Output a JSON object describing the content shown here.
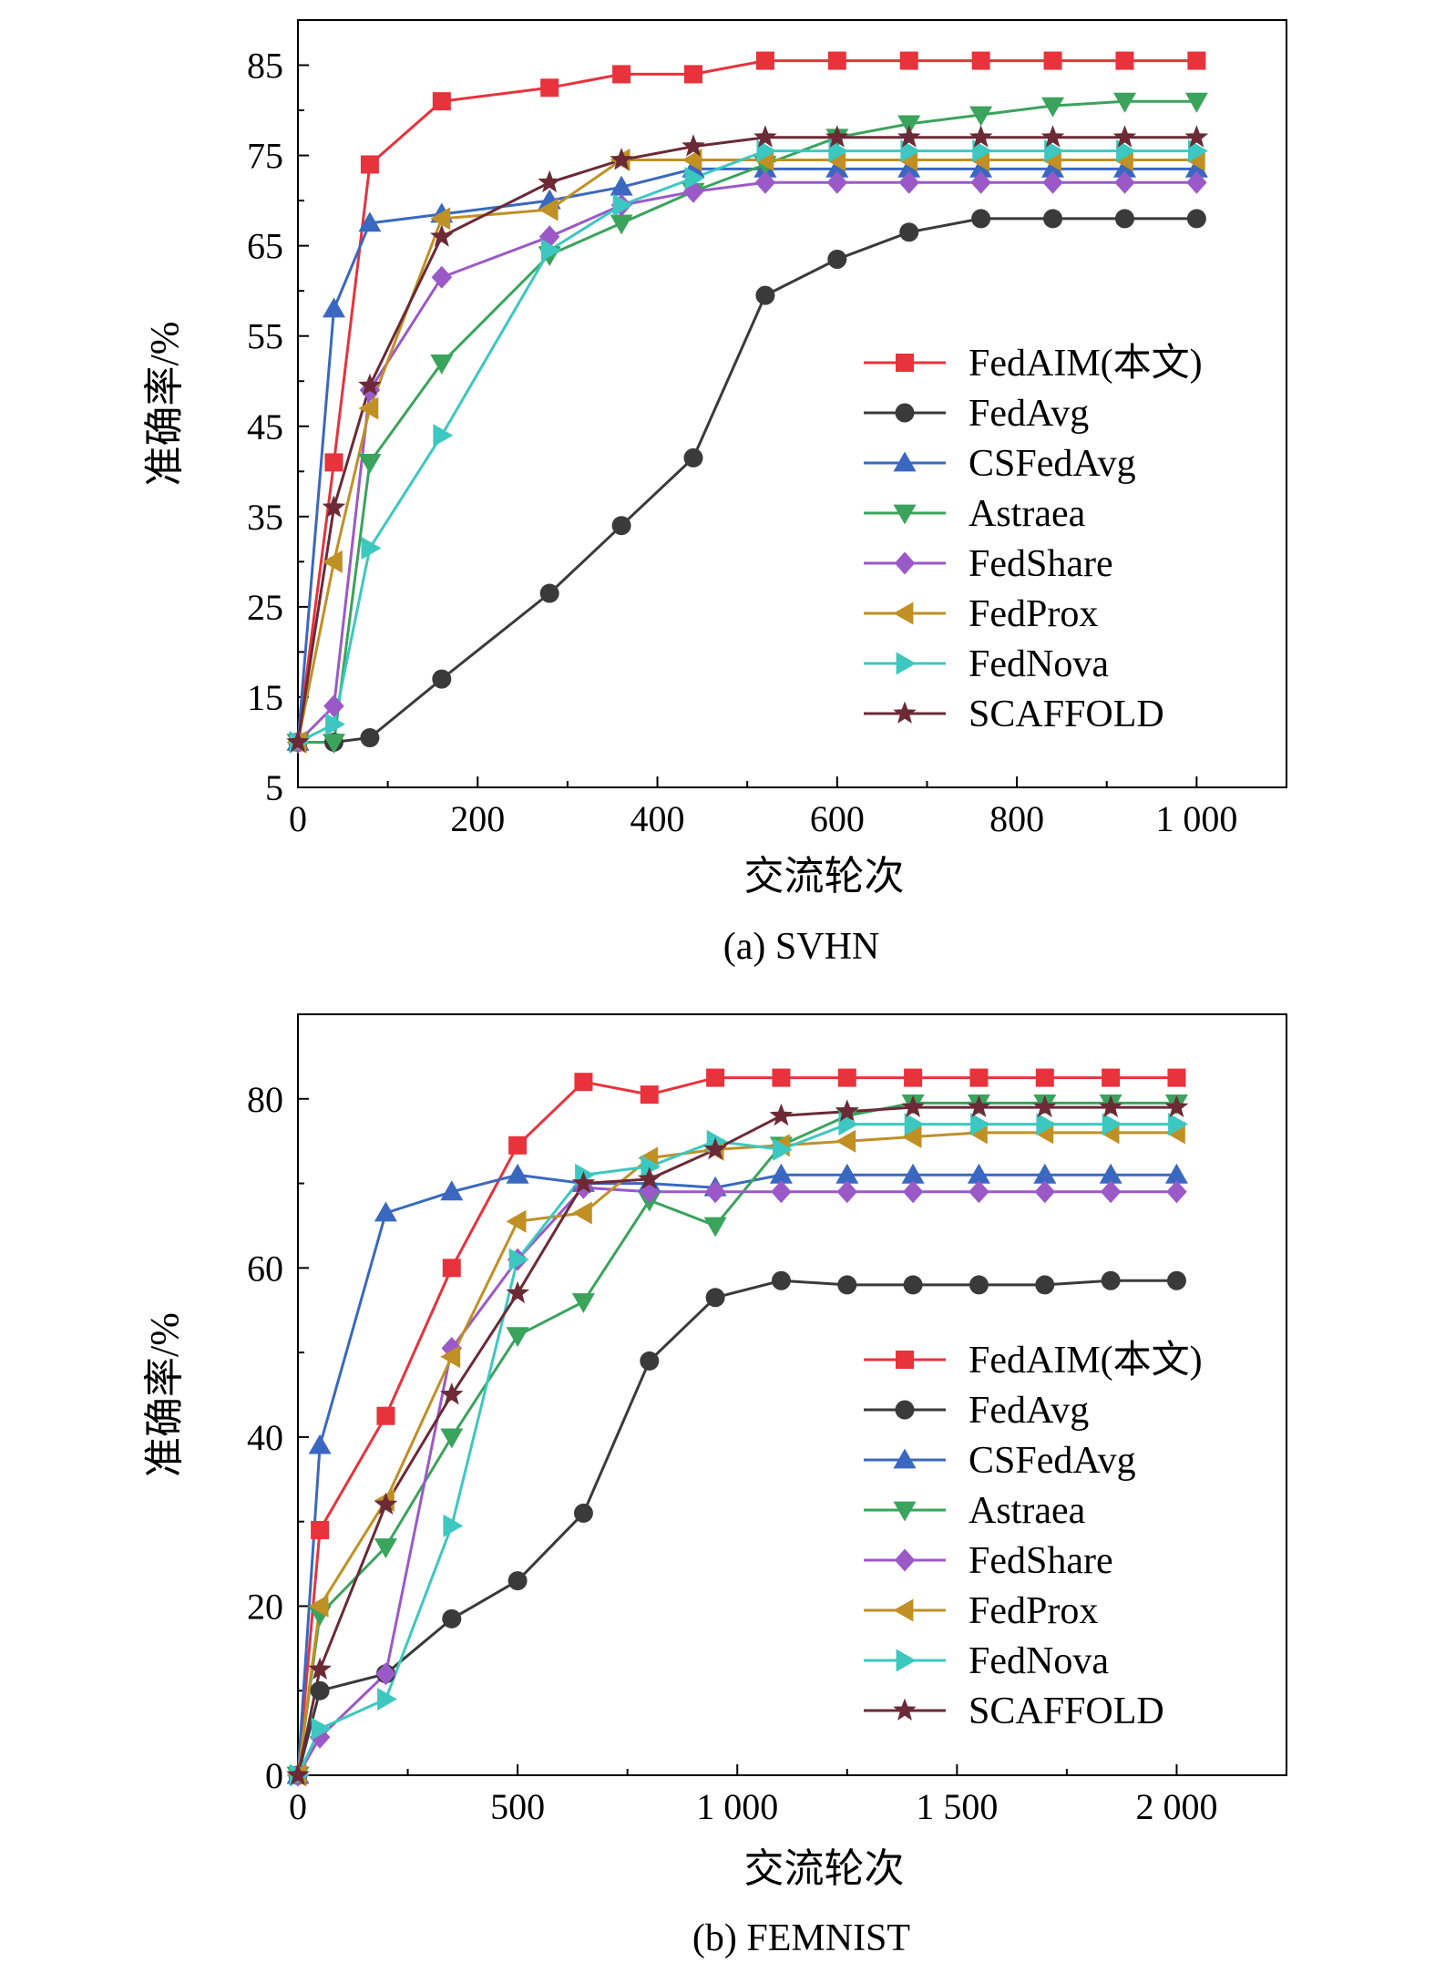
{
  "chart_data": [
    {
      "type": "line",
      "caption": "(a) SVHN",
      "xlabel": "交流轮次",
      "ylabel": "准确率/%",
      "xlim": [
        0,
        1100
      ],
      "ylim": [
        5,
        90
      ],
      "xticks": [
        0,
        200,
        400,
        600,
        800,
        1000
      ],
      "xtick_labels": [
        "0",
        "200",
        "400",
        "600",
        "800",
        "1 000"
      ],
      "yticks": [
        5,
        15,
        25,
        35,
        45,
        55,
        65,
        75,
        85
      ],
      "ytick_labels": [
        "5",
        "15",
        "25",
        "35",
        "45",
        "55",
        "65",
        "75",
        "85"
      ],
      "grid": false,
      "legend_position": "bottom-right",
      "x": [
        0,
        40,
        80,
        160,
        280,
        360,
        440,
        520,
        600,
        680,
        760,
        840,
        920,
        1000
      ],
      "series": [
        {
          "name": "FedAIM(本文)",
          "color": "#e8323c",
          "marker": "square",
          "values": [
            10,
            41,
            74,
            81,
            82.5,
            84,
            84,
            85.5,
            85.5,
            85.5,
            85.5,
            85.5,
            85.5,
            85.5
          ]
        },
        {
          "name": "FedAvg",
          "color": "#3a3a3a",
          "marker": "circle",
          "values": [
            10,
            10,
            10.5,
            17,
            26.5,
            34,
            41.5,
            59.5,
            63.5,
            66.5,
            68,
            68,
            68,
            68
          ]
        },
        {
          "name": "CSFedAvg",
          "color": "#3a68c0",
          "marker": "triangle-up",
          "values": [
            10,
            58,
            67.5,
            68.5,
            70,
            71.5,
            73.5,
            73.5,
            73.5,
            73.5,
            73.5,
            73.5,
            73.5,
            73.5
          ]
        },
        {
          "name": "Astraea",
          "color": "#3aa35c",
          "marker": "triangle-down",
          "values": [
            10,
            10,
            41,
            52,
            64,
            67.5,
            71,
            74,
            77,
            78.5,
            79.5,
            80.5,
            81,
            81
          ]
        },
        {
          "name": "FedShare",
          "color": "#9b59c8",
          "marker": "diamond",
          "values": [
            10,
            14,
            49,
            61.5,
            66,
            69.5,
            71,
            72,
            72,
            72,
            72,
            72,
            72,
            72
          ]
        },
        {
          "name": "FedProx",
          "color": "#c09025",
          "marker": "triangle-left",
          "values": [
            10,
            30,
            47,
            68,
            69,
            74.5,
            74.5,
            74.5,
            74.5,
            74.5,
            74.5,
            74.5,
            74.5,
            74.5
          ]
        },
        {
          "name": "FedNova",
          "color": "#3cc8c0",
          "marker": "triangle-right",
          "values": [
            10,
            12,
            31.5,
            44,
            64.5,
            69.5,
            72.5,
            75.5,
            75.5,
            75.5,
            75.5,
            75.5,
            75.5,
            75.5
          ]
        },
        {
          "name": "SCAFFOLD",
          "color": "#6b2a36",
          "marker": "star",
          "values": [
            10,
            36,
            49.5,
            66,
            72,
            74.5,
            76,
            77,
            77,
            77,
            77,
            77,
            77,
            77
          ]
        }
      ]
    },
    {
      "type": "line",
      "caption": "(b) FEMNIST",
      "xlabel": "交流轮次",
      "ylabel": "准确率/%",
      "xlim": [
        0,
        2250
      ],
      "ylim": [
        0,
        90
      ],
      "xticks": [
        0,
        500,
        1000,
        1500,
        2000
      ],
      "xtick_labels": [
        "0",
        "500",
        "1 000",
        "1 500",
        "2 000"
      ],
      "yticks": [
        0,
        20,
        40,
        60,
        80
      ],
      "ytick_labels": [
        "0",
        "20",
        "40",
        "60",
        "80"
      ],
      "grid": false,
      "legend_position": "bottom-right",
      "x": [
        0,
        50,
        200,
        350,
        500,
        650,
        800,
        950,
        1100,
        1250,
        1400,
        1550,
        1700,
        1850,
        2000
      ],
      "series": [
        {
          "name": "FedAIM(本文)",
          "color": "#e8323c",
          "marker": "square",
          "values": [
            0,
            29,
            42.5,
            60,
            74.5,
            82,
            80.5,
            82.5,
            82.5,
            82.5,
            82.5,
            82.5,
            82.5,
            82.5,
            82.5
          ]
        },
        {
          "name": "FedAvg",
          "color": "#3a3a3a",
          "marker": "circle",
          "values": [
            0,
            10,
            12,
            18.5,
            23,
            31,
            49,
            56.5,
            58.5,
            58,
            58,
            58,
            58,
            58.5,
            58.5
          ]
        },
        {
          "name": "CSFedAvg",
          "color": "#3a68c0",
          "marker": "triangle-up",
          "values": [
            0,
            39,
            66.5,
            69,
            71,
            70,
            70,
            69.5,
            71,
            71,
            71,
            71,
            71,
            71,
            71
          ]
        },
        {
          "name": "Astraea",
          "color": "#3aa35c",
          "marker": "triangle-down",
          "values": [
            0,
            19,
            27,
            40,
            52,
            56,
            68,
            65,
            74.5,
            78,
            79.5,
            79.5,
            79.5,
            79.5,
            79.5
          ]
        },
        {
          "name": "FedShare",
          "color": "#9b59c8",
          "marker": "diamond",
          "values": [
            0,
            4.5,
            12,
            50.5,
            61,
            69.5,
            69,
            69,
            69,
            69,
            69,
            69,
            69,
            69,
            69
          ]
        },
        {
          "name": "FedProx",
          "color": "#c09025",
          "marker": "triangle-left",
          "values": [
            0,
            20,
            32.5,
            49.5,
            65.5,
            66.5,
            73,
            74,
            74.5,
            75,
            75.5,
            76,
            76,
            76,
            76
          ]
        },
        {
          "name": "FedNova",
          "color": "#3cc8c0",
          "marker": "triangle-right",
          "values": [
            0,
            5.5,
            9,
            29.5,
            61,
            71,
            72,
            75,
            74,
            77,
            77,
            77,
            77,
            77,
            77
          ]
        },
        {
          "name": "SCAFFOLD",
          "color": "#6b2a36",
          "marker": "star",
          "values": [
            0,
            12.5,
            32,
            45,
            57,
            70,
            70.5,
            74,
            78,
            78.5,
            79,
            79,
            79,
            79,
            79
          ]
        }
      ]
    }
  ]
}
